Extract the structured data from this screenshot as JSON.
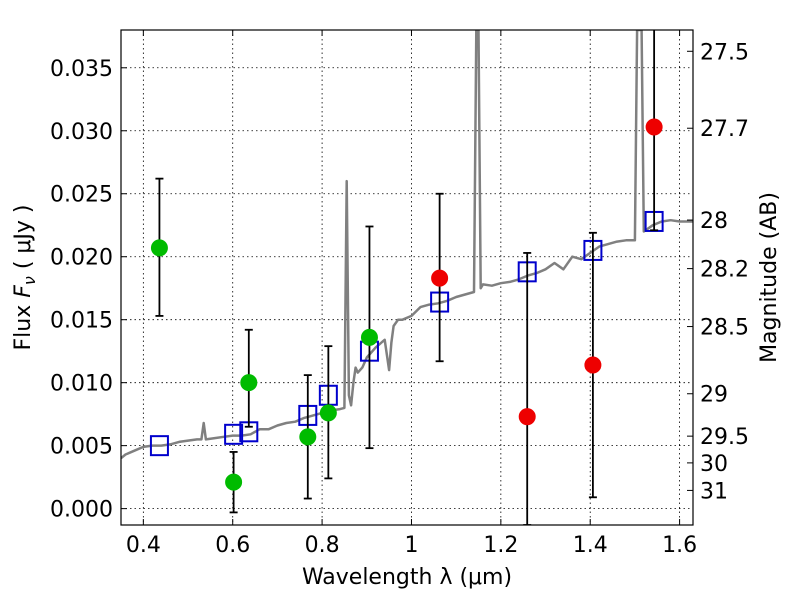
{
  "chart_data": {
    "type": "scatter",
    "xlabel": "Wavelength  λ (μm)",
    "ylabel": "Flux  F_ν  ( μJy )",
    "ylabel_parts": {
      "prefix": "Flux  ",
      "symbol": "F",
      "subscript": "ν",
      "suffix": "  ( μJy )"
    },
    "y2label": "Magnitude (AB)",
    "xlim": [
      0.35,
      1.63
    ],
    "ylim": [
      -0.0013,
      0.038
    ],
    "grid": true,
    "grid_style": "dotted",
    "x_ticks": [
      {
        "value": 0.4,
        "label": "0.4"
      },
      {
        "value": 0.6,
        "label": "0.6"
      },
      {
        "value": 0.8,
        "label": "0.8"
      },
      {
        "value": 1.0,
        "label": "1"
      },
      {
        "value": 1.2,
        "label": "1.2"
      },
      {
        "value": 1.4,
        "label": "1.4"
      },
      {
        "value": 1.6,
        "label": "1.6"
      }
    ],
    "y_ticks": [
      {
        "value": 0.0,
        "label": "0.000"
      },
      {
        "value": 0.005,
        "label": "0.005"
      },
      {
        "value": 0.01,
        "label": "0.010"
      },
      {
        "value": 0.015,
        "label": "0.015"
      },
      {
        "value": 0.02,
        "label": "0.020"
      },
      {
        "value": 0.025,
        "label": "0.025"
      },
      {
        "value": 0.03,
        "label": "0.030"
      },
      {
        "value": 0.035,
        "label": "0.035"
      }
    ],
    "y2_ticks": [
      {
        "value": 27.5,
        "label": "27.5"
      },
      {
        "value": 27.7,
        "label": "27.7"
      },
      {
        "value": 28.0,
        "label": "28"
      },
      {
        "value": 28.2,
        "label": "28.2"
      },
      {
        "value": 28.5,
        "label": "28.5"
      },
      {
        "value": 29.0,
        "label": "29"
      },
      {
        "value": 29.5,
        "label": "29.5"
      },
      {
        "value": 30.0,
        "label": "30"
      },
      {
        "value": 31.0,
        "label": "31"
      }
    ],
    "series": [
      {
        "kind": "line",
        "color": "#808080",
        "x": [
          0.35,
          0.36,
          0.38,
          0.4,
          0.42,
          0.44,
          0.46,
          0.48,
          0.5,
          0.52,
          0.53,
          0.535,
          0.54,
          0.56,
          0.58,
          0.6,
          0.62,
          0.64,
          0.66,
          0.68,
          0.7,
          0.72,
          0.74,
          0.76,
          0.78,
          0.8,
          0.82,
          0.84,
          0.85,
          0.855,
          0.86,
          0.865,
          0.87,
          0.875,
          0.88,
          0.89,
          0.9,
          0.92,
          0.94,
          0.95,
          0.955,
          0.96,
          0.97,
          0.98,
          1.0,
          1.02,
          1.04,
          1.06,
          1.08,
          1.1,
          1.12,
          1.14,
          1.145,
          1.15,
          1.155,
          1.16,
          1.18,
          1.2,
          1.22,
          1.24,
          1.26,
          1.28,
          1.3,
          1.32,
          1.34,
          1.36,
          1.38,
          1.4,
          1.42,
          1.44,
          1.46,
          1.48,
          1.5,
          1.505,
          1.51,
          1.515,
          1.52,
          1.54,
          1.56,
          1.58,
          1.6,
          1.63
        ],
        "y": [
          0.004,
          0.0043,
          0.0046,
          0.0049,
          0.005,
          0.005,
          0.0051,
          0.0053,
          0.0054,
          0.0055,
          0.0055,
          0.0068,
          0.0055,
          0.0056,
          0.0057,
          0.0058,
          0.0058,
          0.0059,
          0.0063,
          0.0063,
          0.0066,
          0.0068,
          0.0069,
          0.0072,
          0.0074,
          0.0076,
          0.0078,
          0.0079,
          0.008,
          0.026,
          0.009,
          0.0082,
          0.01,
          0.0112,
          0.0108,
          0.0112,
          0.012,
          0.0128,
          0.0134,
          0.011,
          0.0132,
          0.0145,
          0.015,
          0.015,
          0.0153,
          0.016,
          0.0162,
          0.0163,
          0.0165,
          0.0168,
          0.017,
          0.0172,
          0.038,
          0.038,
          0.0175,
          0.0178,
          0.0177,
          0.0179,
          0.018,
          0.0182,
          0.0185,
          0.0187,
          0.019,
          0.0195,
          0.019,
          0.02,
          0.0198,
          0.0203,
          0.0208,
          0.021,
          0.0212,
          0.0213,
          0.0213,
          0.038,
          0.038,
          0.038,
          0.022,
          0.0225,
          0.0228,
          0.0229,
          0.0228,
          0.0228
        ]
      },
      {
        "kind": "open-square",
        "color": "#0000cc",
        "x": [
          0.436,
          0.602,
          0.636,
          0.768,
          0.814,
          0.906,
          1.063,
          1.259,
          1.406,
          1.543
        ],
        "y": [
          0.005,
          0.0059,
          0.0061,
          0.0074,
          0.009,
          0.0125,
          0.0164,
          0.0188,
          0.0205,
          0.0228
        ]
      },
      {
        "kind": "errorbar-point",
        "color": "#00bb00",
        "x": [
          0.436,
          0.602,
          0.636,
          0.768,
          0.814,
          0.906
        ],
        "y": [
          0.0207,
          0.0021,
          0.01,
          0.0057,
          0.0076,
          0.0136
        ],
        "err_low": [
          0.0153,
          -0.0003,
          0.0065,
          0.0008,
          0.0024,
          0.0048
        ],
        "err_high": [
          0.0262,
          0.0045,
          0.0142,
          0.0106,
          0.0129,
          0.0224
        ]
      },
      {
        "kind": "errorbar-point",
        "color": "#ee0000",
        "x": [
          1.063,
          1.259,
          1.406,
          1.543
        ],
        "y": [
          0.0183,
          0.0073,
          0.0114,
          0.0303
        ],
        "err_low": [
          0.0117,
          -0.0013,
          0.0009,
          0.0221
        ],
        "err_high": [
          0.025,
          0.0203,
          0.0219,
          0.0381
        ]
      }
    ]
  }
}
